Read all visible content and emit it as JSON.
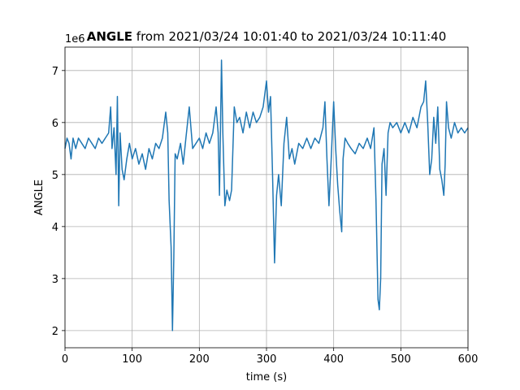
{
  "chart_data": {
    "type": "line",
    "title": {
      "bold": "ANGLE",
      "rest": "from 2021/03/24 10:01:40 to 2021/03/24 10:11:40"
    },
    "x_label": "time (s)",
    "y_label": "ANGLE",
    "offset_text": "1e6",
    "color": "#1f77b4",
    "grid": true,
    "xlim": [
      0,
      600
    ],
    "xticks": [
      0,
      100,
      200,
      300,
      400,
      500,
      600
    ],
    "ylim": [
      1.67,
      7.45
    ],
    "yticks": [
      2,
      3,
      4,
      5,
      6,
      7
    ],
    "x": [
      0,
      3,
      6,
      9,
      12,
      16,
      20,
      25,
      30,
      35,
      40,
      45,
      50,
      55,
      60,
      65,
      68,
      70,
      73,
      76,
      78,
      80,
      82,
      85,
      88,
      92,
      96,
      100,
      105,
      110,
      115,
      120,
      125,
      130,
      135,
      140,
      145,
      150,
      153,
      155,
      158,
      160,
      162,
      164,
      167,
      172,
      176,
      180,
      185,
      190,
      195,
      200,
      205,
      210,
      215,
      220,
      225,
      228,
      230,
      233,
      235,
      238,
      241,
      245,
      248,
      252,
      256,
      260,
      265,
      270,
      275,
      280,
      285,
      290,
      295,
      300,
      303,
      306,
      309,
      312,
      315,
      318,
      322,
      326,
      330,
      334,
      338,
      342,
      348,
      354,
      360,
      366,
      372,
      378,
      384,
      387,
      390,
      393,
      396,
      400,
      403,
      406,
      409,
      412,
      414,
      417,
      421,
      426,
      432,
      438,
      444,
      450,
      455,
      460,
      463,
      466,
      468,
      470,
      472,
      475,
      478,
      481,
      484,
      488,
      494,
      500,
      506,
      512,
      518,
      524,
      530,
      534,
      537,
      540,
      543,
      546,
      549,
      552,
      555,
      558,
      561,
      564,
      566,
      568,
      571,
      575,
      580,
      585,
      590,
      595,
      600
    ],
    "values": [
      5.5,
      5.7,
      5.6,
      5.3,
      5.7,
      5.5,
      5.7,
      5.6,
      5.5,
      5.7,
      5.6,
      5.5,
      5.7,
      5.6,
      5.7,
      5.8,
      6.3,
      5.5,
      5.9,
      5.0,
      6.5,
      4.4,
      5.8,
      5.1,
      4.9,
      5.3,
      5.6,
      5.3,
      5.5,
      5.2,
      5.4,
      5.1,
      5.5,
      5.3,
      5.6,
      5.5,
      5.7,
      6.2,
      5.8,
      4.5,
      3.6,
      2.0,
      3.4,
      5.4,
      5.3,
      5.6,
      5.2,
      5.7,
      6.3,
      5.5,
      5.6,
      5.7,
      5.5,
      5.8,
      5.6,
      5.8,
      6.3,
      5.8,
      4.6,
      7.2,
      5.8,
      4.4,
      4.7,
      4.5,
      4.7,
      6.3,
      6.0,
      6.1,
      5.8,
      6.2,
      5.9,
      6.2,
      6.0,
      6.1,
      6.3,
      6.8,
      6.2,
      6.5,
      5.0,
      3.3,
      4.6,
      5.0,
      4.4,
      5.6,
      6.1,
      5.3,
      5.5,
      5.2,
      5.6,
      5.5,
      5.7,
      5.5,
      5.7,
      5.6,
      5.9,
      6.4,
      5.3,
      4.4,
      5.2,
      6.4,
      5.5,
      4.8,
      4.3,
      3.9,
      5.3,
      5.7,
      5.6,
      5.5,
      5.4,
      5.6,
      5.5,
      5.7,
      5.5,
      5.9,
      4.5,
      2.6,
      2.4,
      3.0,
      5.2,
      5.5,
      4.6,
      5.8,
      6.0,
      5.9,
      6.0,
      5.8,
      6.0,
      5.8,
      6.1,
      5.9,
      6.3,
      6.4,
      6.8,
      6.0,
      5.0,
      5.3,
      6.1,
      5.6,
      6.3,
      5.1,
      4.9,
      4.6,
      5.2,
      6.4,
      5.9,
      5.7,
      6.0,
      5.8,
      5.9,
      5.8,
      5.9
    ]
  }
}
